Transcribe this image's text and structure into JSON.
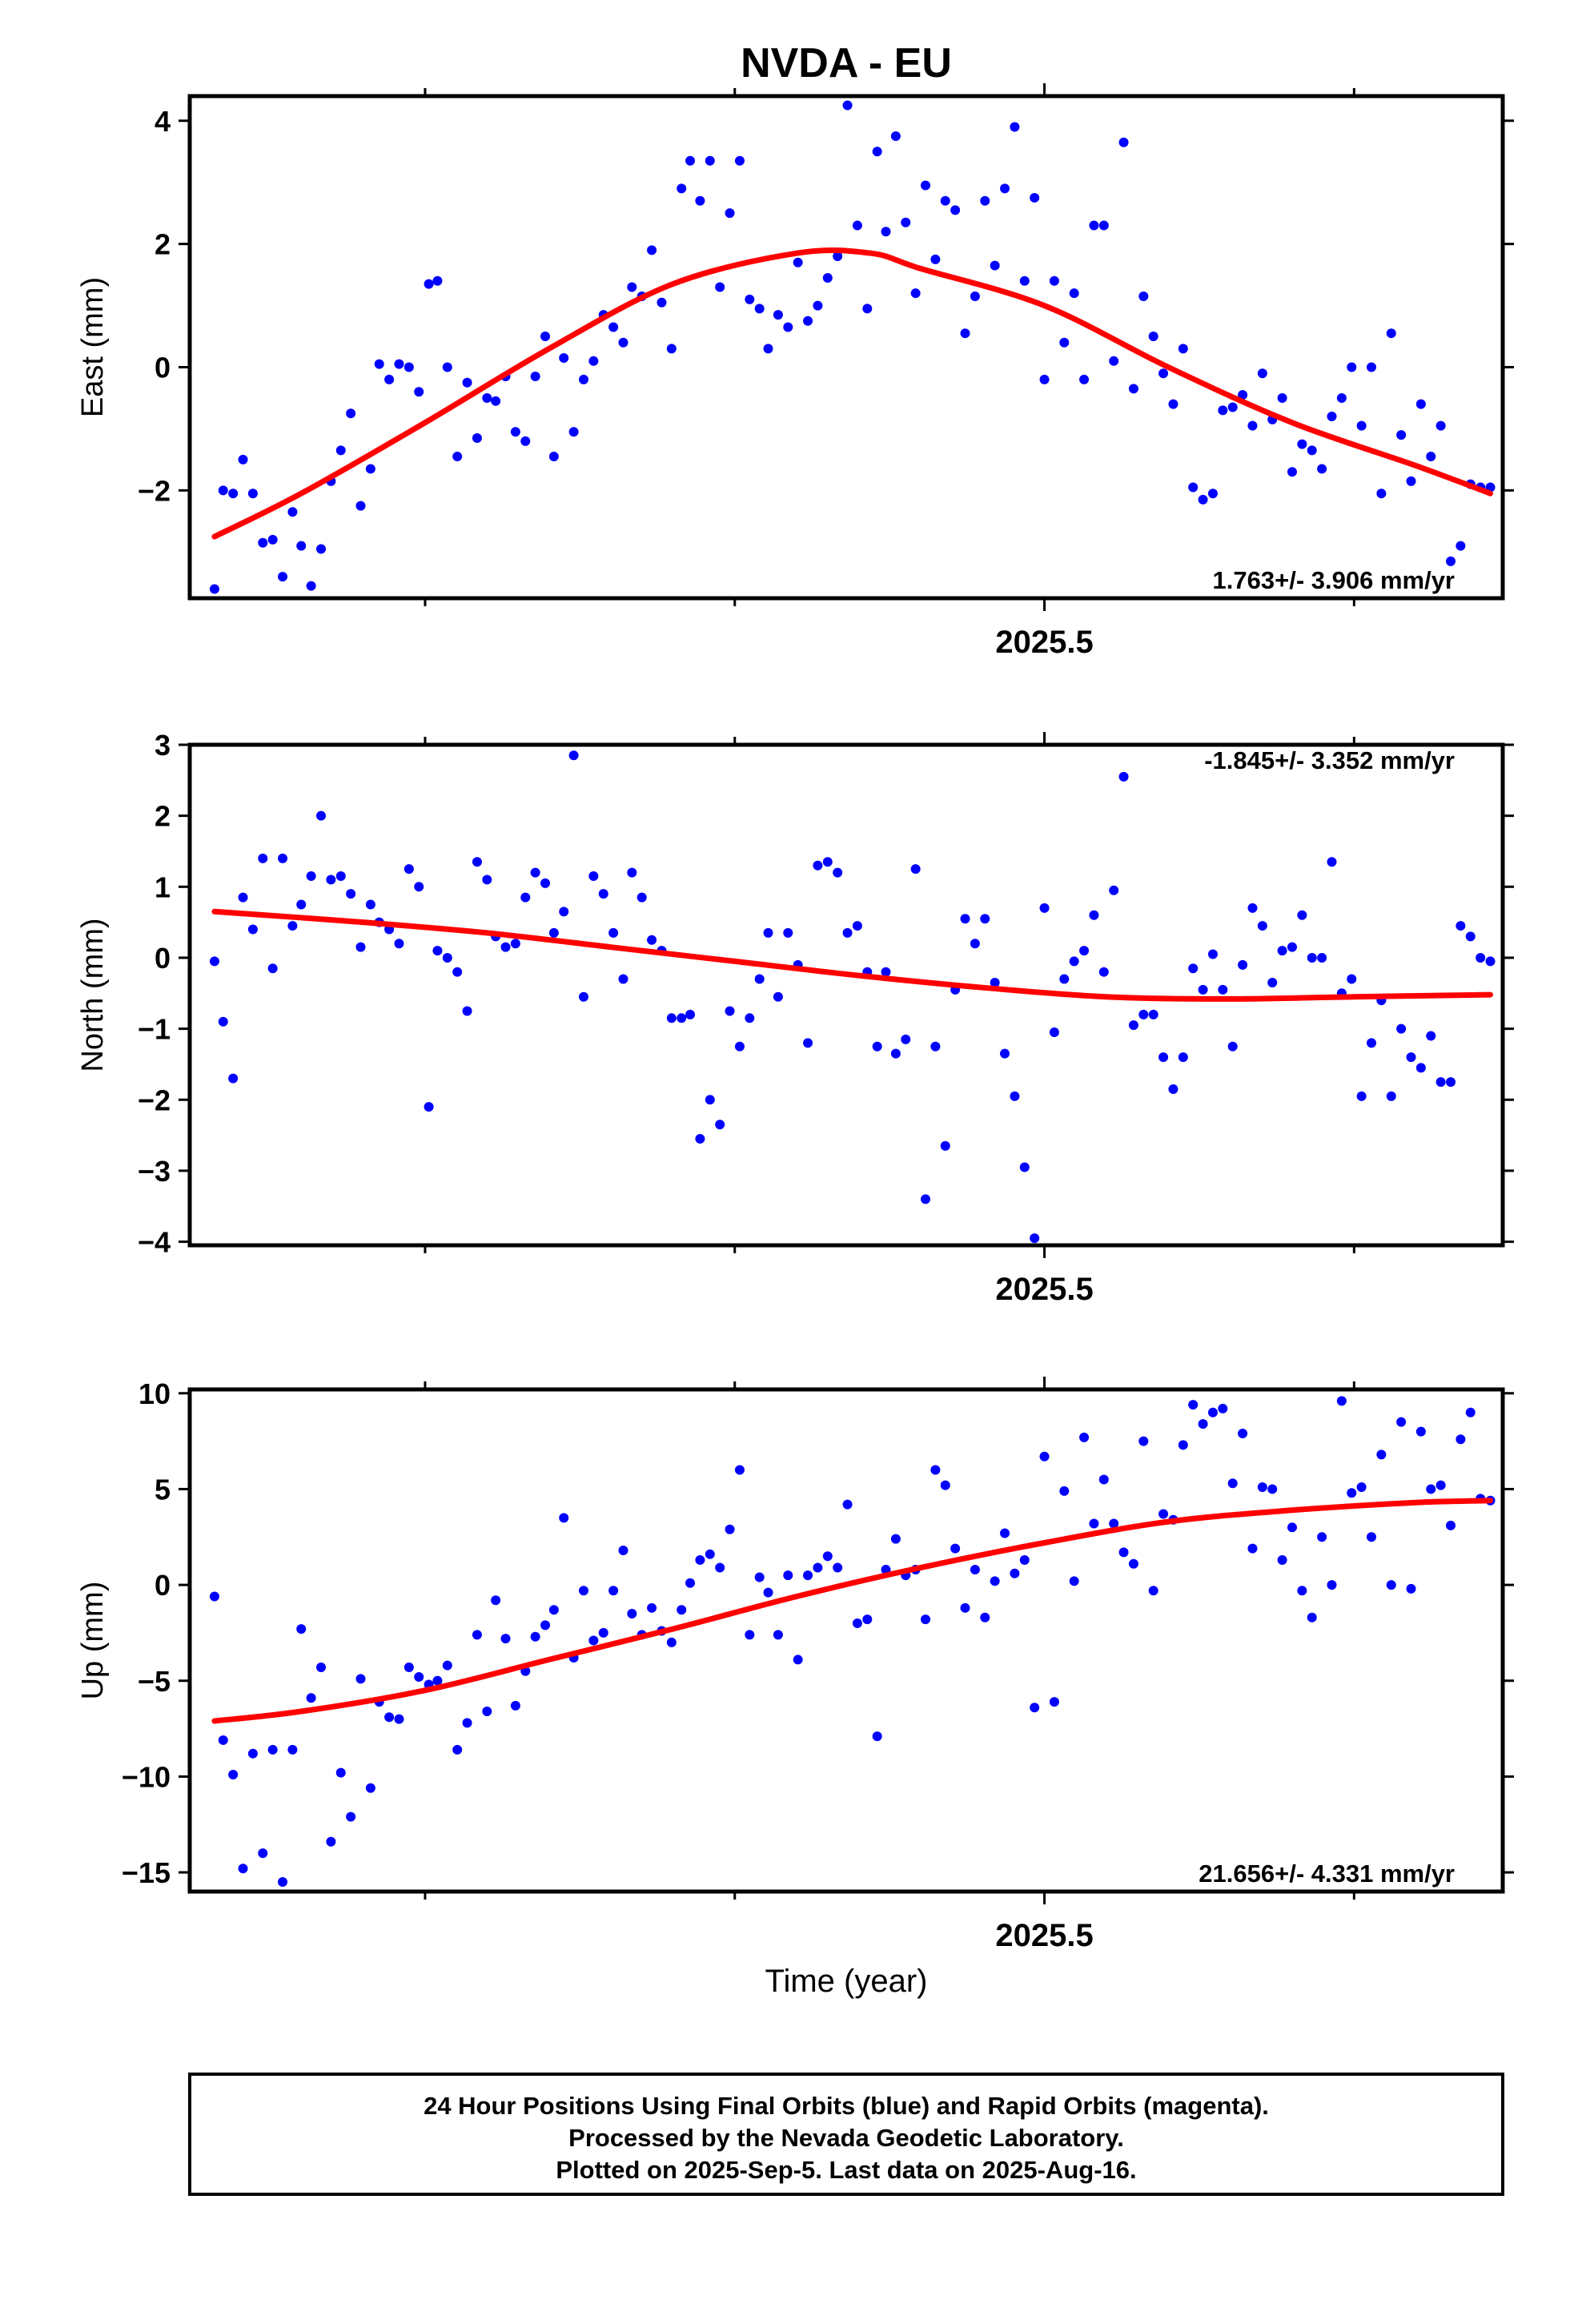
{
  "title": "NVDA - EU",
  "x_label": "Time (year)",
  "footer": {
    "lines": [
      "24 Hour Positions Using Final Orbits (blue) and Rapid Orbits (magenta).",
      "Processed by the Nevada Geodetic Laboratory.",
      "Plotted on 2025-Sep-5. Last data on 2025-Aug-16."
    ]
  },
  "colors": {
    "points": "#0000ff",
    "fit": "#ff0000",
    "axis": "#000000"
  },
  "chart_data": [
    {
      "type": "scatter",
      "ylabel": "East (mm)",
      "rate_label": "1.763+/- 3.906 mm/yr",
      "rate_position": "bottom-right",
      "xlim": [
        2024.81,
        2025.87
      ],
      "ylim": [
        -3.75,
        4.4
      ],
      "yticks": [
        -2,
        0,
        2,
        4
      ],
      "xtick_label": "2025.5",
      "fit": {
        "x": [
          2024.83,
          2024.9,
          2025.0,
          2025.1,
          2025.2,
          2025.3,
          2025.36,
          2025.4,
          2025.5,
          2025.6,
          2025.7,
          2025.8,
          2025.86
        ],
        "y": [
          -2.75,
          -2.05,
          -0.9,
          0.3,
          1.35,
          1.85,
          1.85,
          1.6,
          1.0,
          0.0,
          -0.9,
          -1.6,
          -2.05
        ]
      },
      "points": {
        "x": [
          2024.83,
          2024.837,
          2024.845,
          2024.853,
          2024.861,
          2024.869,
          2024.877,
          2024.885,
          2024.893,
          2024.9,
          2024.908,
          2024.916,
          2024.924,
          2024.932,
          2024.94,
          2024.948,
          2024.956,
          2024.963,
          2024.971,
          2024.979,
          2024.987,
          2024.995,
          2025.003,
          2025.01,
          2025.018,
          2025.026,
          2025.034,
          2025.042,
          2025.05,
          2025.057,
          2025.065,
          2025.073,
          2025.081,
          2025.089,
          2025.097,
          2025.104,
          2025.112,
          2025.12,
          2025.128,
          2025.136,
          2025.144,
          2025.152,
          2025.16,
          2025.167,
          2025.175,
          2025.183,
          2025.191,
          2025.199,
          2025.207,
          2025.214,
          2025.222,
          2025.23,
          2025.238,
          2025.246,
          2025.254,
          2025.262,
          2025.27,
          2025.277,
          2025.285,
          2025.293,
          2025.301,
          2025.309,
          2025.317,
          2025.325,
          2025.333,
          2025.341,
          2025.349,
          2025.357,
          2025.365,
          2025.372,
          2025.38,
          2025.388,
          2025.396,
          2025.404,
          2025.412,
          2025.42,
          2025.428,
          2025.436,
          2025.444,
          2025.452,
          2025.46,
          2025.468,
          2025.476,
          2025.484,
          2025.492,
          2025.5,
          2025.508,
          2025.516,
          2025.524,
          2025.532,
          2025.54,
          2025.548,
          2025.556,
          2025.564,
          2025.572,
          2025.58,
          2025.588,
          2025.596,
          2025.604,
          2025.612,
          2025.62,
          2025.628,
          2025.636,
          2025.644,
          2025.652,
          2025.66,
          2025.668,
          2025.676,
          2025.684,
          2025.692,
          2025.7,
          2025.708,
          2025.716,
          2025.724,
          2025.732,
          2025.74,
          2025.748,
          2025.756,
          2025.764,
          2025.772,
          2025.78,
          2025.788,
          2025.796,
          2025.804,
          2025.812,
          2025.82,
          2025.828,
          2025.836,
          2025.844,
          2025.852,
          2025.86
        ],
        "y": [
          -3.6,
          -2.0,
          -2.05,
          -1.5,
          -2.05,
          -2.85,
          -2.8,
          -3.4,
          -2.35,
          -2.9,
          -3.55,
          -2.95,
          -1.85,
          -1.35,
          -0.75,
          -2.25,
          -1.65,
          0.05,
          -0.2,
          0.05,
          0.0,
          -0.4,
          1.35,
          1.4,
          0.0,
          -1.45,
          -0.25,
          -1.15,
          -0.5,
          -0.55,
          -0.15,
          -1.05,
          -1.2,
          -0.15,
          0.5,
          -1.45,
          0.15,
          -1.05,
          -0.2,
          0.1,
          0.85,
          0.65,
          0.4,
          1.3,
          1.15,
          1.9,
          1.05,
          0.3,
          2.9,
          3.35,
          2.7,
          3.35,
          1.3,
          2.5,
          3.35,
          1.1,
          0.95,
          0.3,
          0.85,
          0.65,
          1.7,
          0.75,
          1.0,
          1.45,
          1.8,
          4.25,
          2.3,
          0.95,
          3.5,
          2.2,
          3.75,
          2.35,
          1.2,
          2.95,
          1.75,
          2.7,
          2.55,
          0.55,
          1.15,
          2.7,
          1.65,
          2.9,
          3.9,
          1.4,
          2.75,
          -0.2,
          1.4,
          0.4,
          1.2,
          -0.2,
          2.3,
          2.3,
          0.1,
          3.65,
          -0.35,
          1.15,
          0.5,
          -0.1,
          -0.6,
          0.3,
          -1.95,
          -2.15,
          -2.05,
          -0.7,
          -0.65,
          -0.45,
          -0.95,
          -0.1,
          -0.85,
          -0.5,
          -1.7,
          -1.25,
          -1.35,
          -1.65,
          -0.8,
          -0.5,
          0.0,
          -0.95,
          0.0,
          -2.05,
          0.55,
          -1.1,
          -1.85,
          -0.6,
          -1.45,
          -0.95,
          -3.15,
          -2.9,
          -1.9,
          -1.95,
          -1.95
        ]
      }
    },
    {
      "type": "scatter",
      "ylabel": "North (mm)",
      "rate_label": "-1.845+/- 3.352 mm/yr",
      "rate_position": "top-right",
      "xlim": [
        2024.81,
        2025.87
      ],
      "ylim": [
        -4.05,
        3.0
      ],
      "yticks": [
        -4,
        -3,
        -2,
        -1,
        0,
        1,
        2,
        3
      ],
      "xtick_label": "2025.5",
      "fit": {
        "x": [
          2024.83,
          2024.95,
          2025.05,
          2025.15,
          2025.25,
          2025.35,
          2025.45,
          2025.55,
          2025.65,
          2025.75,
          2025.86
        ],
        "y": [
          0.65,
          0.5,
          0.35,
          0.15,
          -0.05,
          -0.25,
          -0.42,
          -0.55,
          -0.58,
          -0.55,
          -0.52
        ]
      },
      "points": {
        "x": [
          2024.83,
          2024.837,
          2024.845,
          2024.853,
          2024.861,
          2024.869,
          2024.877,
          2024.885,
          2024.893,
          2024.9,
          2024.908,
          2024.916,
          2024.924,
          2024.932,
          2024.94,
          2024.948,
          2024.956,
          2024.963,
          2024.971,
          2024.979,
          2024.987,
          2024.995,
          2025.003,
          2025.01,
          2025.018,
          2025.026,
          2025.034,
          2025.042,
          2025.05,
          2025.057,
          2025.065,
          2025.073,
          2025.081,
          2025.089,
          2025.097,
          2025.104,
          2025.112,
          2025.12,
          2025.128,
          2025.136,
          2025.144,
          2025.152,
          2025.16,
          2025.167,
          2025.175,
          2025.183,
          2025.191,
          2025.199,
          2025.207,
          2025.214,
          2025.222,
          2025.23,
          2025.238,
          2025.246,
          2025.254,
          2025.262,
          2025.27,
          2025.277,
          2025.285,
          2025.293,
          2025.301,
          2025.309,
          2025.317,
          2025.325,
          2025.333,
          2025.341,
          2025.349,
          2025.357,
          2025.365,
          2025.372,
          2025.38,
          2025.388,
          2025.396,
          2025.404,
          2025.412,
          2025.42,
          2025.428,
          2025.436,
          2025.444,
          2025.452,
          2025.46,
          2025.468,
          2025.476,
          2025.484,
          2025.492,
          2025.5,
          2025.508,
          2025.516,
          2025.524,
          2025.532,
          2025.54,
          2025.548,
          2025.556,
          2025.564,
          2025.572,
          2025.58,
          2025.588,
          2025.596,
          2025.604,
          2025.612,
          2025.62,
          2025.628,
          2025.636,
          2025.644,
          2025.652,
          2025.66,
          2025.668,
          2025.676,
          2025.684,
          2025.692,
          2025.7,
          2025.708,
          2025.716,
          2025.724,
          2025.732,
          2025.74,
          2025.748,
          2025.756,
          2025.764,
          2025.772,
          2025.78,
          2025.788,
          2025.796,
          2025.804,
          2025.812,
          2025.82,
          2025.828,
          2025.836,
          2025.844,
          2025.852,
          2025.86
        ],
        "y": [
          -0.05,
          -0.9,
          -1.7,
          0.85,
          0.4,
          1.4,
          -0.15,
          1.4,
          0.45,
          0.75,
          1.15,
          2.0,
          1.1,
          1.15,
          0.9,
          0.15,
          0.75,
          0.5,
          0.4,
          0.2,
          1.25,
          1.0,
          -2.1,
          0.1,
          0.0,
          -0.2,
          -0.75,
          1.35,
          1.1,
          0.3,
          0.15,
          0.2,
          0.85,
          1.2,
          1.05,
          0.35,
          0.65,
          2.85,
          -0.55,
          1.15,
          0.9,
          0.35,
          -0.3,
          1.2,
          0.85,
          0.25,
          0.1,
          -0.85,
          -0.85,
          -0.8,
          -2.55,
          -2.0,
          -2.35,
          -0.75,
          -1.25,
          -0.85,
          -0.3,
          0.35,
          -0.55,
          0.35,
          -0.1,
          -1.2,
          1.3,
          1.35,
          1.2,
          0.35,
          0.45,
          -0.2,
          -1.25,
          -0.2,
          -1.35,
          -1.15,
          1.25,
          -3.4,
          -1.25,
          -2.65,
          -0.45,
          0.55,
          0.2,
          0.55,
          -0.35,
          -1.35,
          -1.95,
          -2.95,
          -3.95,
          0.7,
          -1.05,
          -0.3,
          -0.05,
          0.1,
          0.6,
          -0.2,
          0.95,
          2.55,
          -0.95,
          -0.8,
          -0.8,
          -1.4,
          -1.85,
          -1.4,
          -0.15,
          -0.45,
          0.05,
          -0.45,
          -1.25,
          -0.1,
          0.7,
          0.45,
          -0.35,
          0.1,
          0.15,
          0.6,
          0.0,
          0.0,
          1.35,
          -0.5,
          -0.3,
          -1.95,
          -1.2,
          -0.6,
          -1.95,
          -1.0,
          -1.4,
          -1.55,
          -1.1,
          -1.75,
          -1.75,
          0.45,
          0.3,
          0.0,
          -0.05
        ]
      }
    },
    {
      "type": "scatter",
      "ylabel": "Up (mm)",
      "rate_label": "21.656+/- 4.331 mm/yr",
      "rate_position": "bottom-right",
      "xlim": [
        2024.81,
        2025.87
      ],
      "ylim": [
        -16,
        10.2
      ],
      "yticks": [
        -15,
        -10,
        -5,
        0,
        5,
        10
      ],
      "xtick_label": "2025.5",
      "fit": {
        "x": [
          2024.83,
          2024.9,
          2025.0,
          2025.1,
          2025.2,
          2025.3,
          2025.4,
          2025.5,
          2025.6,
          2025.7,
          2025.8,
          2025.86
        ],
        "y": [
          -7.1,
          -6.6,
          -5.5,
          -3.9,
          -2.3,
          -0.6,
          0.9,
          2.2,
          3.3,
          3.9,
          4.3,
          4.4
        ]
      },
      "points": {
        "x": [
          2024.83,
          2024.837,
          2024.845,
          2024.853,
          2024.861,
          2024.869,
          2024.877,
          2024.885,
          2024.893,
          2024.9,
          2024.908,
          2024.916,
          2024.924,
          2024.932,
          2024.94,
          2024.948,
          2024.956,
          2024.963,
          2024.971,
          2024.979,
          2024.987,
          2024.995,
          2025.003,
          2025.01,
          2025.018,
          2025.026,
          2025.034,
          2025.042,
          2025.05,
          2025.057,
          2025.065,
          2025.073,
          2025.081,
          2025.089,
          2025.097,
          2025.104,
          2025.112,
          2025.12,
          2025.128,
          2025.136,
          2025.144,
          2025.152,
          2025.16,
          2025.167,
          2025.175,
          2025.183,
          2025.191,
          2025.199,
          2025.207,
          2025.214,
          2025.222,
          2025.23,
          2025.238,
          2025.246,
          2025.254,
          2025.262,
          2025.27,
          2025.277,
          2025.285,
          2025.293,
          2025.301,
          2025.309,
          2025.317,
          2025.325,
          2025.333,
          2025.341,
          2025.349,
          2025.357,
          2025.365,
          2025.372,
          2025.38,
          2025.388,
          2025.396,
          2025.404,
          2025.412,
          2025.42,
          2025.428,
          2025.436,
          2025.444,
          2025.452,
          2025.46,
          2025.468,
          2025.476,
          2025.484,
          2025.492,
          2025.5,
          2025.508,
          2025.516,
          2025.524,
          2025.532,
          2025.54,
          2025.548,
          2025.556,
          2025.564,
          2025.572,
          2025.58,
          2025.588,
          2025.596,
          2025.604,
          2025.612,
          2025.62,
          2025.628,
          2025.636,
          2025.644,
          2025.652,
          2025.66,
          2025.668,
          2025.676,
          2025.684,
          2025.692,
          2025.7,
          2025.708,
          2025.716,
          2025.724,
          2025.732,
          2025.74,
          2025.748,
          2025.756,
          2025.764,
          2025.772,
          2025.78,
          2025.788,
          2025.796,
          2025.804,
          2025.812,
          2025.82,
          2025.828,
          2025.836,
          2025.844,
          2025.852,
          2025.86
        ],
        "y": [
          -0.6,
          -8.1,
          -9.9,
          -14.8,
          -8.8,
          -14.0,
          -8.6,
          -15.5,
          -8.6,
          -2.3,
          -5.9,
          -4.3,
          -13.4,
          -9.8,
          -12.1,
          -4.9,
          -10.6,
          -6.1,
          -6.9,
          -7.0,
          -4.3,
          -4.8,
          -5.2,
          -5.0,
          -4.2,
          -8.6,
          -7.2,
          -2.6,
          -6.6,
          -0.8,
          -2.8,
          -6.3,
          -4.5,
          -2.7,
          -2.1,
          -1.3,
          3.5,
          -3.8,
          -0.3,
          -2.9,
          -2.5,
          -0.3,
          1.8,
          -1.5,
          -2.6,
          -1.2,
          -2.4,
          -3.0,
          -1.3,
          0.1,
          1.3,
          1.6,
          0.9,
          2.9,
          6.0,
          -2.6,
          0.4,
          -0.4,
          -2.6,
          0.5,
          -3.9,
          0.5,
          0.9,
          1.5,
          0.9,
          4.2,
          -2.0,
          -1.8,
          -7.9,
          0.8,
          2.4,
          0.5,
          0.8,
          -1.8,
          6.0,
          5.2,
          1.9,
          -1.2,
          0.8,
          -1.7,
          0.2,
          2.7,
          0.6,
          1.3,
          -6.4,
          6.7,
          -6.1,
          4.9,
          0.2,
          7.7,
          3.2,
          5.5,
          3.2,
          1.7,
          1.1,
          7.5,
          -0.3,
          3.7,
          3.4,
          7.3,
          9.4,
          8.4,
          9.0,
          9.2,
          5.3,
          7.9,
          1.9,
          5.1,
          5.0,
          1.3,
          3.0,
          -0.3,
          -1.7,
          2.5,
          0.0,
          9.6,
          4.8,
          5.1,
          2.5,
          6.8,
          0.0,
          8.5,
          -0.2,
          8.0,
          5.0,
          5.2,
          3.1,
          7.6,
          9.0,
          4.5,
          4.4
        ]
      }
    }
  ]
}
